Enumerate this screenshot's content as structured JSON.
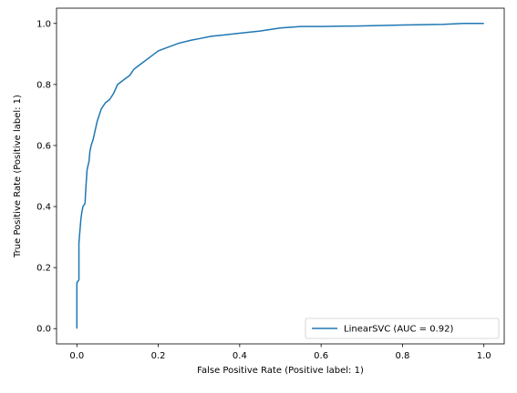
{
  "chart_data": {
    "type": "line",
    "title": "",
    "xlabel": "False Positive Rate (Positive label: 1)",
    "ylabel": "True Positive Rate (Positive label: 1)",
    "xlim": [
      -0.05,
      1.05
    ],
    "ylim": [
      -0.05,
      1.05
    ],
    "xticks": [
      {
        "value": 0.0,
        "label": "0.0"
      },
      {
        "value": 0.2,
        "label": "0.2"
      },
      {
        "value": 0.4,
        "label": "0.4"
      },
      {
        "value": 0.6,
        "label": "0.6"
      },
      {
        "value": 0.8,
        "label": "0.8"
      },
      {
        "value": 1.0,
        "label": "1.0"
      }
    ],
    "yticks": [
      {
        "value": 0.0,
        "label": "0.0"
      },
      {
        "value": 0.2,
        "label": "0.2"
      },
      {
        "value": 0.4,
        "label": "0.4"
      },
      {
        "value": 0.6,
        "label": "0.6"
      },
      {
        "value": 0.8,
        "label": "0.8"
      },
      {
        "value": 1.0,
        "label": "1.0"
      }
    ],
    "grid": false,
    "legend": {
      "placement": "lower-right"
    },
    "series": [
      {
        "name": "LinearSVC (AUC = 0.92)",
        "color": "#1f77b4",
        "x": [
          0.0,
          0.0,
          0.005,
          0.005,
          0.008,
          0.01,
          0.012,
          0.015,
          0.02,
          0.022,
          0.025,
          0.03,
          0.032,
          0.035,
          0.04,
          0.045,
          0.05,
          0.055,
          0.06,
          0.07,
          0.08,
          0.09,
          0.1,
          0.11,
          0.12,
          0.13,
          0.14,
          0.15,
          0.16,
          0.18,
          0.2,
          0.22,
          0.25,
          0.28,
          0.3,
          0.33,
          0.36,
          0.4,
          0.45,
          0.5,
          0.55,
          0.6,
          0.7,
          0.8,
          0.9,
          0.95,
          1.0
        ],
        "y": [
          0.0,
          0.15,
          0.16,
          0.28,
          0.33,
          0.36,
          0.38,
          0.4,
          0.41,
          0.46,
          0.52,
          0.55,
          0.58,
          0.6,
          0.62,
          0.65,
          0.68,
          0.7,
          0.72,
          0.74,
          0.75,
          0.77,
          0.8,
          0.81,
          0.82,
          0.83,
          0.85,
          0.86,
          0.87,
          0.89,
          0.91,
          0.92,
          0.935,
          0.945,
          0.95,
          0.958,
          0.962,
          0.968,
          0.975,
          0.985,
          0.99,
          0.99,
          0.992,
          0.995,
          0.997,
          1.0,
          1.0
        ]
      }
    ]
  }
}
